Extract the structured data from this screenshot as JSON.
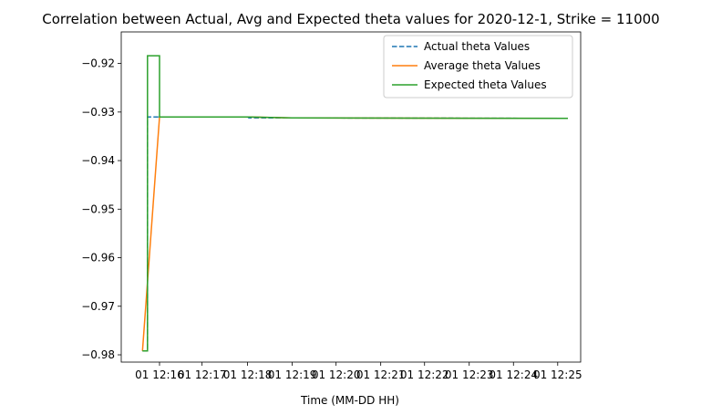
{
  "chart_data": {
    "type": "line",
    "title": "Correlation between Actual, Avg and Expected theta values for 2020-12-1, Strike = 11000",
    "xlabel": "Time (MM-DD HH)",
    "ylabel": "",
    "ylim": [
      -0.9815,
      -0.9135
    ],
    "xlim": [
      -0.05,
      1.03
    ],
    "x_ticks": [
      {
        "value": 0.04,
        "label": "01 12:16"
      },
      {
        "value": 0.14,
        "label": "01 12:17"
      },
      {
        "value": 0.247,
        "label": "01 12:18"
      },
      {
        "value": 0.352,
        "label": "01 12:19"
      },
      {
        "value": 0.455,
        "label": "01 12:20"
      },
      {
        "value": 0.56,
        "label": "01 12:21"
      },
      {
        "value": 0.663,
        "label": "01 12:22"
      },
      {
        "value": 0.768,
        "label": "01 12:23"
      },
      {
        "value": 0.872,
        "label": "01 12:24"
      },
      {
        "value": 0.976,
        "label": "01 12:25"
      }
    ],
    "y_ticks": [
      -0.98,
      -0.97,
      -0.96,
      -0.95,
      -0.94,
      -0.93,
      -0.92
    ],
    "legend_position": "top-right",
    "grid": false,
    "series": [
      {
        "name": "Actual theta Values",
        "color": "#1f77b4",
        "style": "dashed",
        "x": [
          0.0,
          0.0117,
          0.0117,
          0.247,
          0.25,
          0.35,
          1.0
        ],
        "y": [
          -0.9792,
          -0.9792,
          -0.931,
          -0.931,
          -0.9312,
          -0.9312,
          -0.9313
        ]
      },
      {
        "name": "Average theta Values",
        "color": "#ff7f0e",
        "style": "solid",
        "x": [
          0.0,
          0.04,
          0.25,
          0.35,
          1.0
        ],
        "y": [
          -0.9792,
          -0.931,
          -0.931,
          -0.9312,
          -0.9313
        ]
      },
      {
        "name": "Expected theta Values",
        "color": "#2ca02c",
        "style": "solid",
        "x": [
          0.0,
          0.0117,
          0.0117,
          0.04,
          0.04,
          0.25,
          0.35,
          1.0
        ],
        "y": [
          -0.9792,
          -0.9792,
          -0.9184,
          -0.9184,
          -0.931,
          -0.931,
          -0.9312,
          -0.9313
        ]
      }
    ]
  }
}
